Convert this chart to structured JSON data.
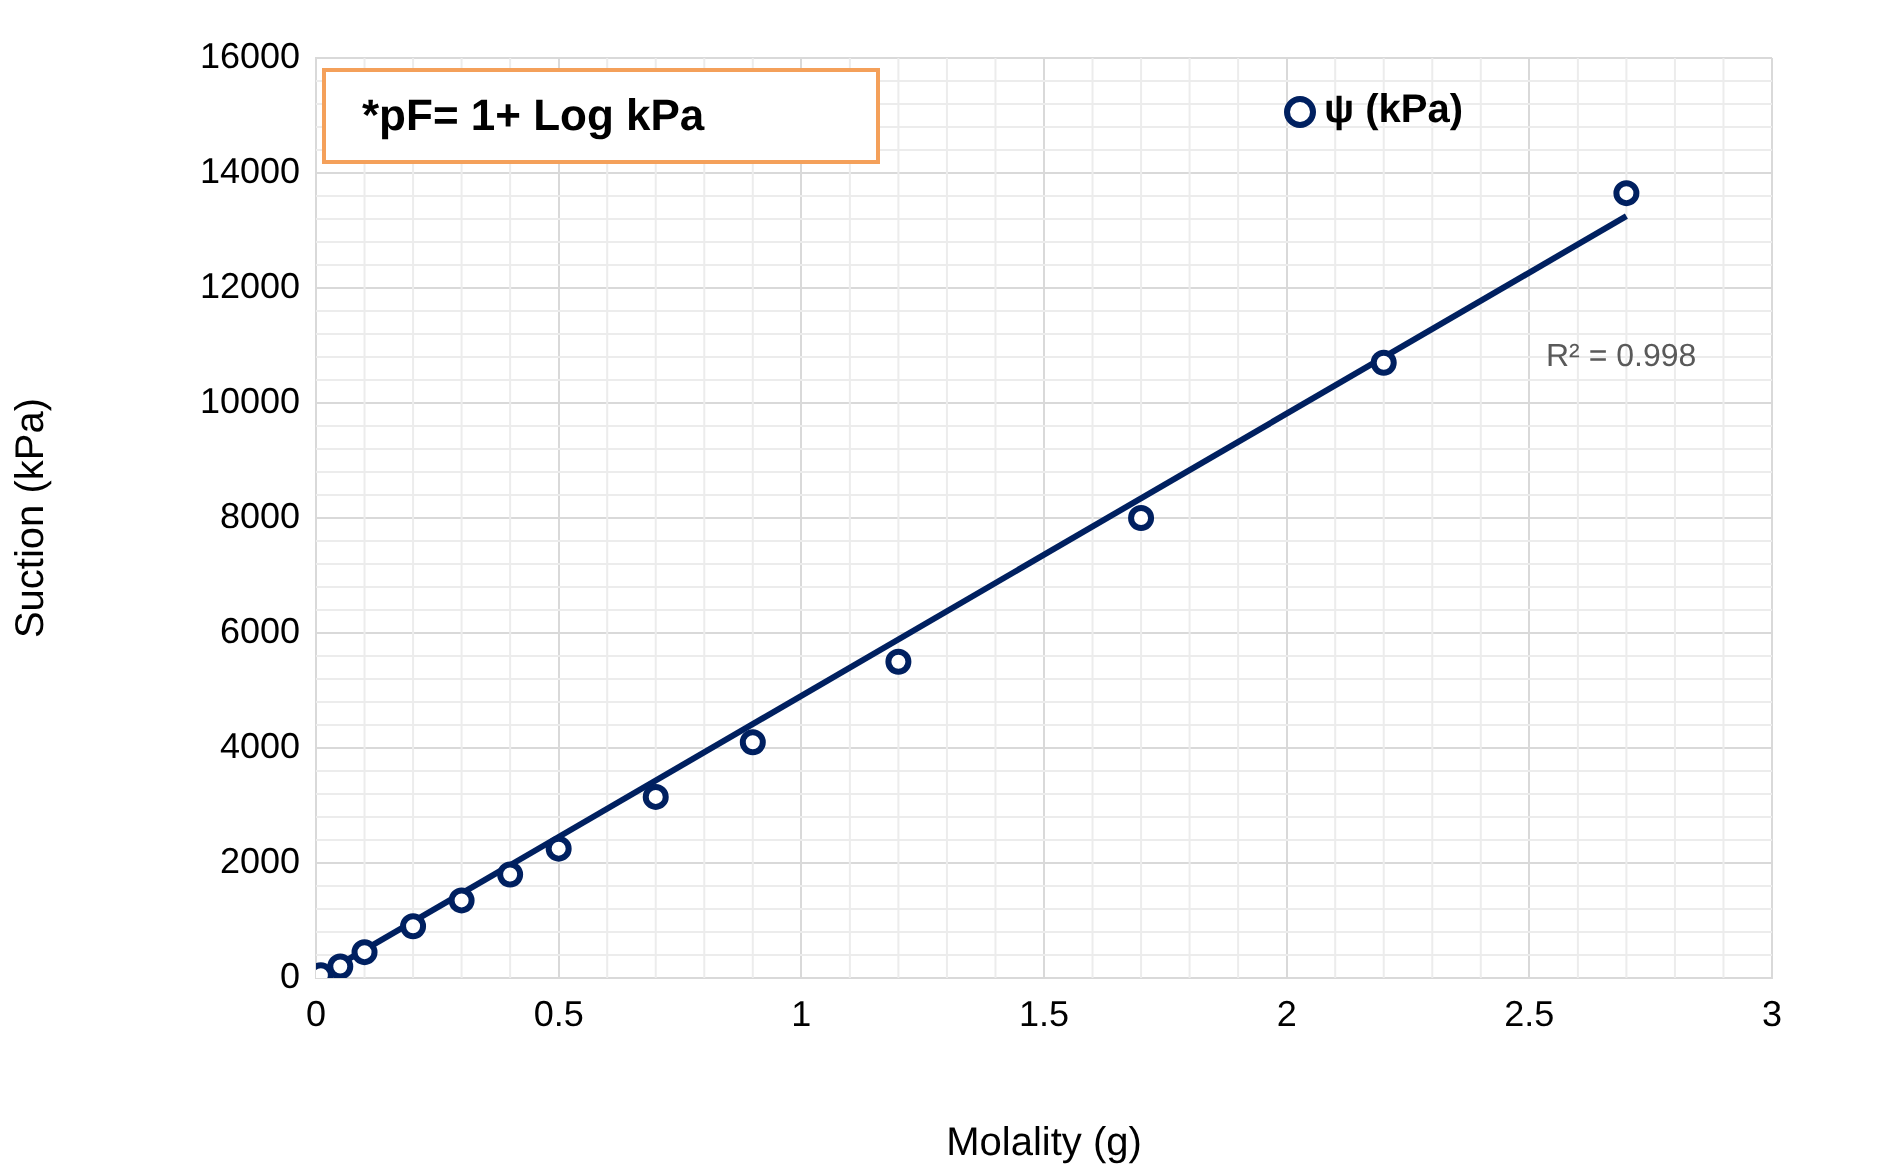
{
  "chart_data": {
    "type": "scatter",
    "xlabel": "Molality (g)",
    "ylabel": "Suction (kPa)",
    "annotations": [
      "*pF= 1+ Log kPa",
      "R² = 0.998"
    ],
    "series": [
      {
        "name": "ψ (kPa)",
        "color": "#002060",
        "marker": "circle",
        "x": [
          0.01,
          0.05,
          0.1,
          0.2,
          0.3,
          0.4,
          0.5,
          0.7,
          0.9,
          1.2,
          1.7,
          2.2,
          2.7
        ],
        "values": [
          50,
          200,
          450,
          900,
          1350,
          1800,
          2250,
          3150,
          4100,
          5500,
          8000,
          10700,
          13650
        ]
      },
      {
        "type": "line",
        "color": "#002060",
        "marker": "none",
        "x": [
          0,
          2.7
        ],
        "values": [
          0,
          13250
        ]
      }
    ],
    "xlim": [
      0,
      3
    ],
    "xticks": [
      0,
      0.5,
      1,
      1.5,
      2,
      2.5,
      3
    ],
    "ylim": [
      0,
      16000
    ],
    "yticks": [
      0,
      2000,
      4000,
      6000,
      8000,
      10000,
      12000,
      14000,
      16000
    ],
    "grid": true,
    "legend": "top right"
  }
}
